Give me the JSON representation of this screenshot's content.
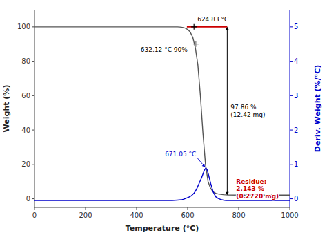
{
  "chart_data": {
    "type": "line",
    "xlabel": "Temperature (°C)",
    "ylabel": "Weight (%)",
    "y2label": "Deriv. Weight (%/°C)",
    "y2label_color": "#0000cc",
    "xlim": [
      0,
      1000
    ],
    "ylim": [
      -5,
      110
    ],
    "y2lim": [
      -0.25,
      5.5
    ],
    "xticks": [
      0,
      200,
      400,
      600,
      800,
      1000
    ],
    "yticks": [
      0,
      20,
      40,
      60,
      80,
      100
    ],
    "y2ticks": [
      0,
      1,
      2,
      3,
      4,
      5
    ],
    "series": [
      {
        "color": "#555555",
        "x": [
          0,
          50,
          100,
          200,
          300,
          400,
          500,
          540,
          560,
          570,
          580,
          590,
          600,
          610,
          620,
          630,
          640,
          650,
          660,
          670,
          680,
          690,
          700,
          710,
          720,
          730,
          740,
          750,
          760,
          800,
          850,
          900,
          1000
        ],
        "values": [
          100,
          100,
          100,
          100,
          100,
          100,
          100,
          100,
          100,
          99.9,
          99.7,
          99.3,
          98.5,
          97,
          94,
          88,
          78,
          60,
          38,
          20,
          10,
          6,
          4,
          3.2,
          2.8,
          2.6,
          2.4,
          2.3,
          2.2,
          2.143,
          2.143,
          2.143,
          2.143
        ]
      },
      {
        "color": "#cc0000",
        "x": [
          597,
          755
        ],
        "values": [
          100,
          100
        ]
      },
      {
        "color": "#0000cc",
        "axis": "y2",
        "x": [
          0,
          200,
          400,
          540,
          560,
          575,
          585,
          595,
          605,
          615,
          625,
          635,
          645,
          655,
          660,
          665,
          671,
          676,
          681,
          690,
          700,
          710,
          720,
          730,
          740,
          750,
          800,
          900,
          1000
        ],
        "values": [
          -0.05,
          -0.05,
          -0.05,
          -0.05,
          -0.04,
          -0.03,
          -0.01,
          0.02,
          0.05,
          0.09,
          0.16,
          0.28,
          0.45,
          0.62,
          0.72,
          0.82,
          0.9,
          0.85,
          0.72,
          0.45,
          0.2,
          0.06,
          0.01,
          -0.02,
          -0.04,
          -0.05,
          -0.05,
          -0.05,
          -0.05
        ]
      }
    ],
    "annotations": [
      {
        "text": "624.83 °C",
        "x": 624.83,
        "y": 100,
        "marker": "plus",
        "color": "#000000"
      },
      {
        "text": "632.12 °C 90%",
        "x": 632.12,
        "y": 90,
        "marker": "plus",
        "color": "#000000"
      },
      {
        "text": "97.86 %\n(12.42 mg)",
        "x": 755,
        "y": 100,
        "y_end": 2.143,
        "arrow": true,
        "color": "#000000"
      },
      {
        "text": "671.05 °C",
        "x": 671,
        "y": 0.9,
        "axis": "y2",
        "arrow": true,
        "color": "#0000cc"
      },
      {
        "text": "Residue:\n2.143 %\n(0.2720 mg)",
        "x": 790,
        "y": 12,
        "color": "#cc0000"
      }
    ]
  }
}
